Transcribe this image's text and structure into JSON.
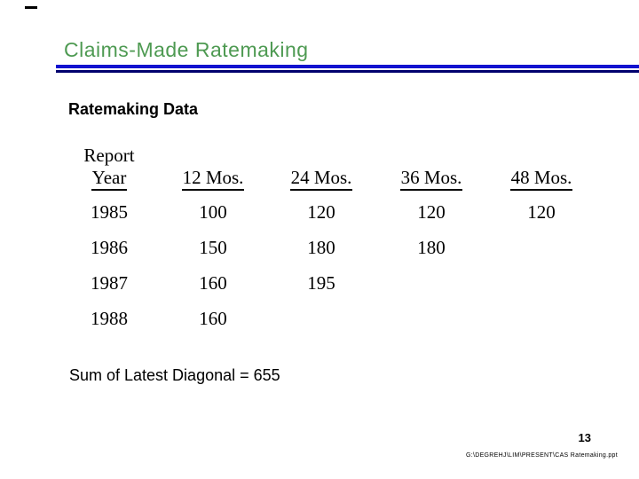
{
  "slide": {
    "title": "Claims-Made Ratemaking",
    "section_heading": "Ratemaking Data",
    "summary": "Sum of Latest Diagonal = 655",
    "page_number": "13",
    "file_path": "G:\\DEGREHJ\\LIM\\PRESENT\\CAS Ratemaking.ppt",
    "colors": {
      "title_green": "#4e9a52",
      "rule_top_blue": "#1212cf",
      "rule_bottom_navy": "#00006e"
    }
  },
  "table": {
    "header_top": "Report",
    "columns": [
      "Year",
      "12 Mos.",
      "24 Mos.",
      "36 Mos.",
      "48 Mos."
    ],
    "rows": [
      [
        "1985",
        "100",
        "120",
        "120",
        "120"
      ],
      [
        "1986",
        "150",
        "180",
        "180",
        ""
      ],
      [
        "1987",
        "160",
        "195",
        "",
        ""
      ],
      [
        "1988",
        "160",
        "",
        "",
        ""
      ]
    ]
  }
}
